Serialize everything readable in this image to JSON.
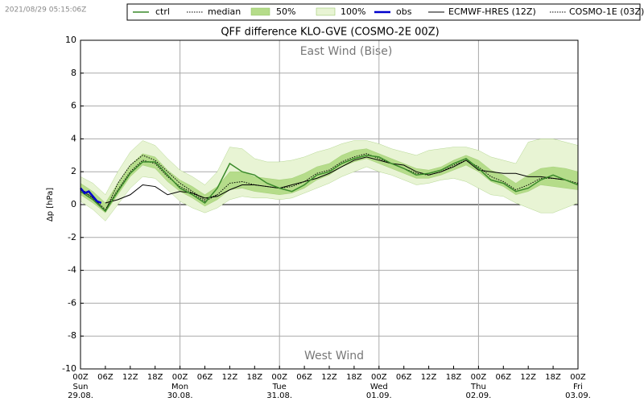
{
  "timestamp": "2021/08/29 05:15:06Z",
  "chart_data": {
    "type": "line",
    "title": "QFF difference KLO-GVE (COSMO-2E 00Z)",
    "ylabel": "Δp [hPa]",
    "annotations": [
      "East Wind (Bise)",
      "West Wind"
    ],
    "xlim": [
      0,
      120
    ],
    "xticks": [
      {
        "value": 0,
        "label": "00Z"
      },
      {
        "value": 6,
        "label": "06Z"
      },
      {
        "value": 12,
        "label": "12Z"
      },
      {
        "value": 18,
        "label": "18Z"
      },
      {
        "value": 24,
        "label": "00Z"
      },
      {
        "value": 30,
        "label": "06Z"
      },
      {
        "value": 36,
        "label": "12Z"
      },
      {
        "value": 42,
        "label": "18Z"
      },
      {
        "value": 48,
        "label": "00Z"
      },
      {
        "value": 54,
        "label": "06Z"
      },
      {
        "value": 60,
        "label": "12Z"
      },
      {
        "value": 66,
        "label": "18Z"
      },
      {
        "value": 72,
        "label": "00Z"
      },
      {
        "value": 78,
        "label": "06Z"
      },
      {
        "value": 84,
        "label": "12Z"
      },
      {
        "value": 90,
        "label": "18Z"
      },
      {
        "value": 96,
        "label": "00Z"
      },
      {
        "value": 102,
        "label": "06Z"
      },
      {
        "value": 108,
        "label": "12Z"
      },
      {
        "value": 114,
        "label": "18Z"
      },
      {
        "value": 120,
        "label": "00Z"
      }
    ],
    "day_labels": [
      {
        "value": 0,
        "weekday": "Sun",
        "date": "29.08."
      },
      {
        "value": 24,
        "weekday": "Mon",
        "date": "30.08."
      },
      {
        "value": 48,
        "weekday": "Tue",
        "date": "31.08."
      },
      {
        "value": 72,
        "weekday": "Wed",
        "date": "01.09."
      },
      {
        "value": 96,
        "weekday": "Thu",
        "date": "02.09."
      },
      {
        "value": 120,
        "weekday": "Fri",
        "date": "03.09."
      }
    ],
    "ylim": [
      -10,
      10
    ],
    "yticks": [
      -10,
      -8,
      -6,
      -4,
      -2,
      0,
      2,
      4,
      6,
      8,
      10
    ],
    "grid": true,
    "x": [
      0,
      3,
      6,
      9,
      12,
      15,
      18,
      21,
      24,
      27,
      30,
      33,
      36,
      39,
      42,
      45,
      48,
      51,
      54,
      57,
      60,
      63,
      66,
      69,
      72,
      75,
      78,
      81,
      84,
      87,
      90,
      93,
      96,
      99,
      102,
      105,
      108,
      111,
      114,
      117,
      120
    ],
    "series": [
      {
        "name": "ctrl",
        "kind": "line",
        "color": "#3a8a2a",
        "style": "solid",
        "width": 1.5,
        "values": [
          0.8,
          0.3,
          -0.4,
          0.8,
          1.9,
          2.6,
          2.6,
          1.8,
          1.0,
          0.6,
          0.1,
          1.0,
          2.5,
          2.0,
          1.8,
          1.3,
          1.0,
          0.8,
          1.2,
          1.8,
          2.0,
          2.5,
          2.8,
          3.0,
          2.9,
          2.5,
          2.2,
          1.8,
          1.9,
          2.1,
          2.5,
          2.8,
          2.2,
          1.5,
          1.3,
          0.8,
          1.0,
          1.5,
          1.8,
          1.5,
          1.2
        ]
      },
      {
        "name": "median",
        "kind": "line",
        "color": "#000000",
        "style": "dotted",
        "width": 1,
        "values": [
          0.9,
          0.4,
          -0.3,
          0.9,
          2.0,
          2.7,
          2.5,
          1.7,
          1.1,
          0.7,
          0.2,
          0.6,
          1.3,
          1.4,
          1.2,
          1.1,
          1.0,
          1.1,
          1.4,
          1.9,
          2.1,
          2.6,
          2.9,
          3.1,
          2.8,
          2.5,
          2.2,
          1.9,
          1.8,
          2.0,
          2.4,
          2.7,
          2.3,
          1.7,
          1.4,
          0.9,
          1.2,
          1.6,
          1.6,
          1.5,
          1.3
        ]
      },
      {
        "name": "50%",
        "kind": "band",
        "color": "#b5dc8a",
        "lower": [
          0.6,
          0.1,
          -0.5,
          0.6,
          1.7,
          2.4,
          2.2,
          1.4,
          0.8,
          0.4,
          -0.1,
          0.3,
          0.9,
          1.0,
          0.8,
          0.7,
          0.6,
          0.7,
          1.0,
          1.5,
          1.8,
          2.3,
          2.6,
          2.8,
          2.5,
          2.2,
          1.9,
          1.6,
          1.6,
          1.8,
          2.1,
          2.4,
          2.0,
          1.4,
          1.1,
          0.6,
          0.8,
          1.2,
          1.1,
          1.0,
          0.9
        ],
        "upper": [
          1.3,
          0.8,
          0.1,
          1.3,
          2.4,
          3.1,
          2.9,
          2.1,
          1.5,
          1.1,
          0.6,
          1.1,
          2.0,
          2.0,
          1.7,
          1.6,
          1.5,
          1.6,
          1.9,
          2.3,
          2.5,
          3.0,
          3.3,
          3.4,
          3.1,
          2.8,
          2.5,
          2.2,
          2.1,
          2.3,
          2.7,
          3.0,
          2.7,
          2.1,
          1.8,
          1.3,
          1.8,
          2.2,
          2.3,
          2.2,
          2.0
        ]
      },
      {
        "name": "100%",
        "kind": "band",
        "color": "#e8f4d4",
        "lower": [
          0.2,
          -0.3,
          -1.0,
          0.0,
          1.0,
          1.7,
          1.6,
          0.9,
          0.2,
          -0.2,
          -0.5,
          -0.2,
          0.3,
          0.5,
          0.4,
          0.4,
          0.3,
          0.4,
          0.7,
          1.0,
          1.3,
          1.7,
          2.0,
          2.3,
          2.0,
          1.8,
          1.5,
          1.2,
          1.3,
          1.5,
          1.6,
          1.4,
          1.0,
          0.6,
          0.5,
          0.1,
          -0.2,
          -0.5,
          -0.5,
          -0.2,
          0.1
        ],
        "upper": [
          1.7,
          1.3,
          0.6,
          2.0,
          3.2,
          3.9,
          3.6,
          2.8,
          2.1,
          1.7,
          1.2,
          2.0,
          3.5,
          3.4,
          2.8,
          2.6,
          2.6,
          2.7,
          2.9,
          3.2,
          3.4,
          3.7,
          3.9,
          3.9,
          3.7,
          3.4,
          3.2,
          3.0,
          3.3,
          3.4,
          3.5,
          3.5,
          3.3,
          2.9,
          2.7,
          2.5,
          3.8,
          4.0,
          4.0,
          3.8,
          3.6
        ]
      },
      {
        "name": "obs",
        "kind": "line",
        "color": "#0000cc",
        "style": "solid",
        "width": 2.5,
        "x": [
          0,
          1,
          2,
          3,
          4,
          5
        ],
        "values": [
          1.0,
          0.7,
          0.8,
          0.5,
          0.2,
          0.1
        ]
      },
      {
        "name": "ECMWF-HRES (12Z)",
        "kind": "line",
        "color": "#000000",
        "style": "solid",
        "width": 1,
        "values": [
          null,
          null,
          0.1,
          0.3,
          0.6,
          1.2,
          1.1,
          0.6,
          0.8,
          0.7,
          0.4,
          0.5,
          0.9,
          1.2,
          1.2,
          1.1,
          1.0,
          1.2,
          1.4,
          1.6,
          1.9,
          2.3,
          2.7,
          2.9,
          2.7,
          2.5,
          2.4,
          2.0,
          1.8,
          2.0,
          2.3,
          2.7,
          2.1,
          2.0,
          1.9,
          1.9,
          1.7,
          1.7,
          1.6,
          1.5,
          1.2
        ]
      },
      {
        "name": "COSMO-1E (03Z)",
        "kind": "line",
        "color": "#000000",
        "style": "dotted",
        "width": 1,
        "values": [
          1.0,
          0.4,
          -0.4,
          1.3,
          2.4,
          3.0,
          2.7,
          2.0,
          1.3,
          0.8,
          0.3,
          0.6,
          null,
          null,
          null,
          null,
          null,
          null,
          null,
          null,
          null,
          null,
          null,
          null,
          null,
          null,
          null,
          null,
          null,
          null,
          null,
          null,
          null,
          null,
          null,
          null,
          null,
          null,
          null,
          null,
          null
        ]
      }
    ]
  }
}
